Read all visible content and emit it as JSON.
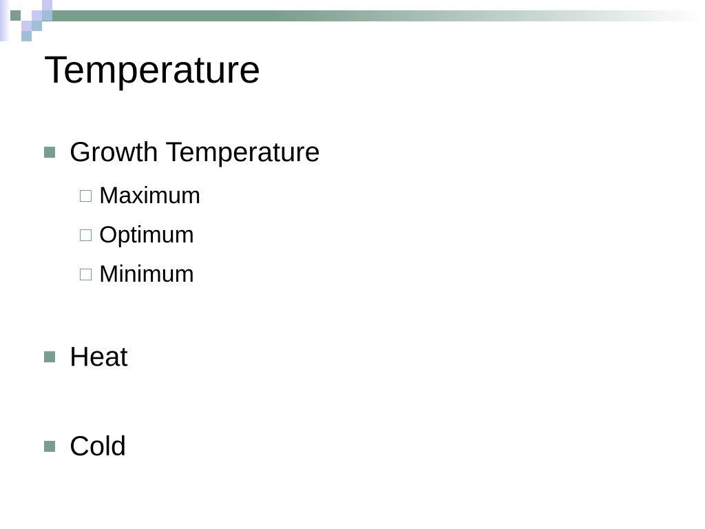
{
  "slide": {
    "title": "Temperature",
    "bullets": [
      {
        "text": "Growth Temperature",
        "sub": [
          "Maximum",
          "Optimum",
          "Minimum"
        ]
      },
      {
        "text": "Heat"
      },
      {
        "text": "Cold"
      }
    ]
  },
  "colors": {
    "accent": "#7a9e8e",
    "lavender": "#c8c8f4",
    "blue": "#9fbfd6"
  }
}
